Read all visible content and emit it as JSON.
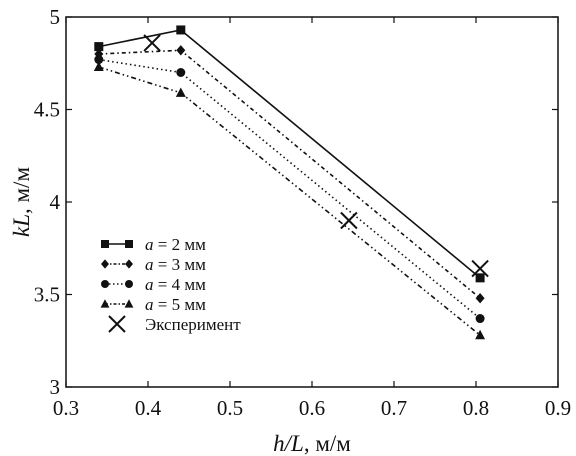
{
  "chart_data": {
    "type": "line",
    "xlabel": {
      "var": "h/L",
      "unit": ", м/м"
    },
    "ylabel": {
      "var": "kL",
      "unit": ", м/м"
    },
    "xlim": [
      0.3,
      0.9
    ],
    "ylim": [
      3,
      5
    ],
    "xticks": [
      "0.3",
      "0.4",
      "0.5",
      "0.6",
      "0.7",
      "0.8",
      "0.9"
    ],
    "yticks": [
      "3",
      "3.5",
      "4",
      "4.5",
      "5"
    ],
    "grid": false,
    "legend_position": "bottom-left",
    "series": [
      {
        "legend_var": "a",
        "legend_value": " = 2 мм",
        "marker": "square",
        "dash": "solid",
        "x": [
          0.34,
          0.44,
          0.805
        ],
        "y": [
          4.84,
          4.93,
          3.59
        ]
      },
      {
        "legend_var": "a",
        "legend_value": " = 3 мм",
        "marker": "diamond",
        "dash": "dash-dot",
        "x": [
          0.34,
          0.44,
          0.805
        ],
        "y": [
          4.8,
          4.82,
          3.48
        ]
      },
      {
        "legend_var": "a",
        "legend_value": " = 4 мм",
        "marker": "circle",
        "dash": "dotted",
        "x": [
          0.34,
          0.44,
          0.805
        ],
        "y": [
          4.77,
          4.7,
          3.37
        ]
      },
      {
        "legend_var": "a",
        "legend_value": " = 5 мм",
        "marker": "triangle",
        "dash": "dash-dot-dot",
        "x": [
          0.34,
          0.44,
          0.805
        ],
        "y": [
          4.73,
          4.59,
          3.28
        ]
      }
    ],
    "experiment": {
      "legend_label": "Эксперимент",
      "marker": "x",
      "x": [
        0.405,
        0.645,
        0.805
      ],
      "y": [
        4.86,
        3.9,
        3.64
      ]
    }
  }
}
